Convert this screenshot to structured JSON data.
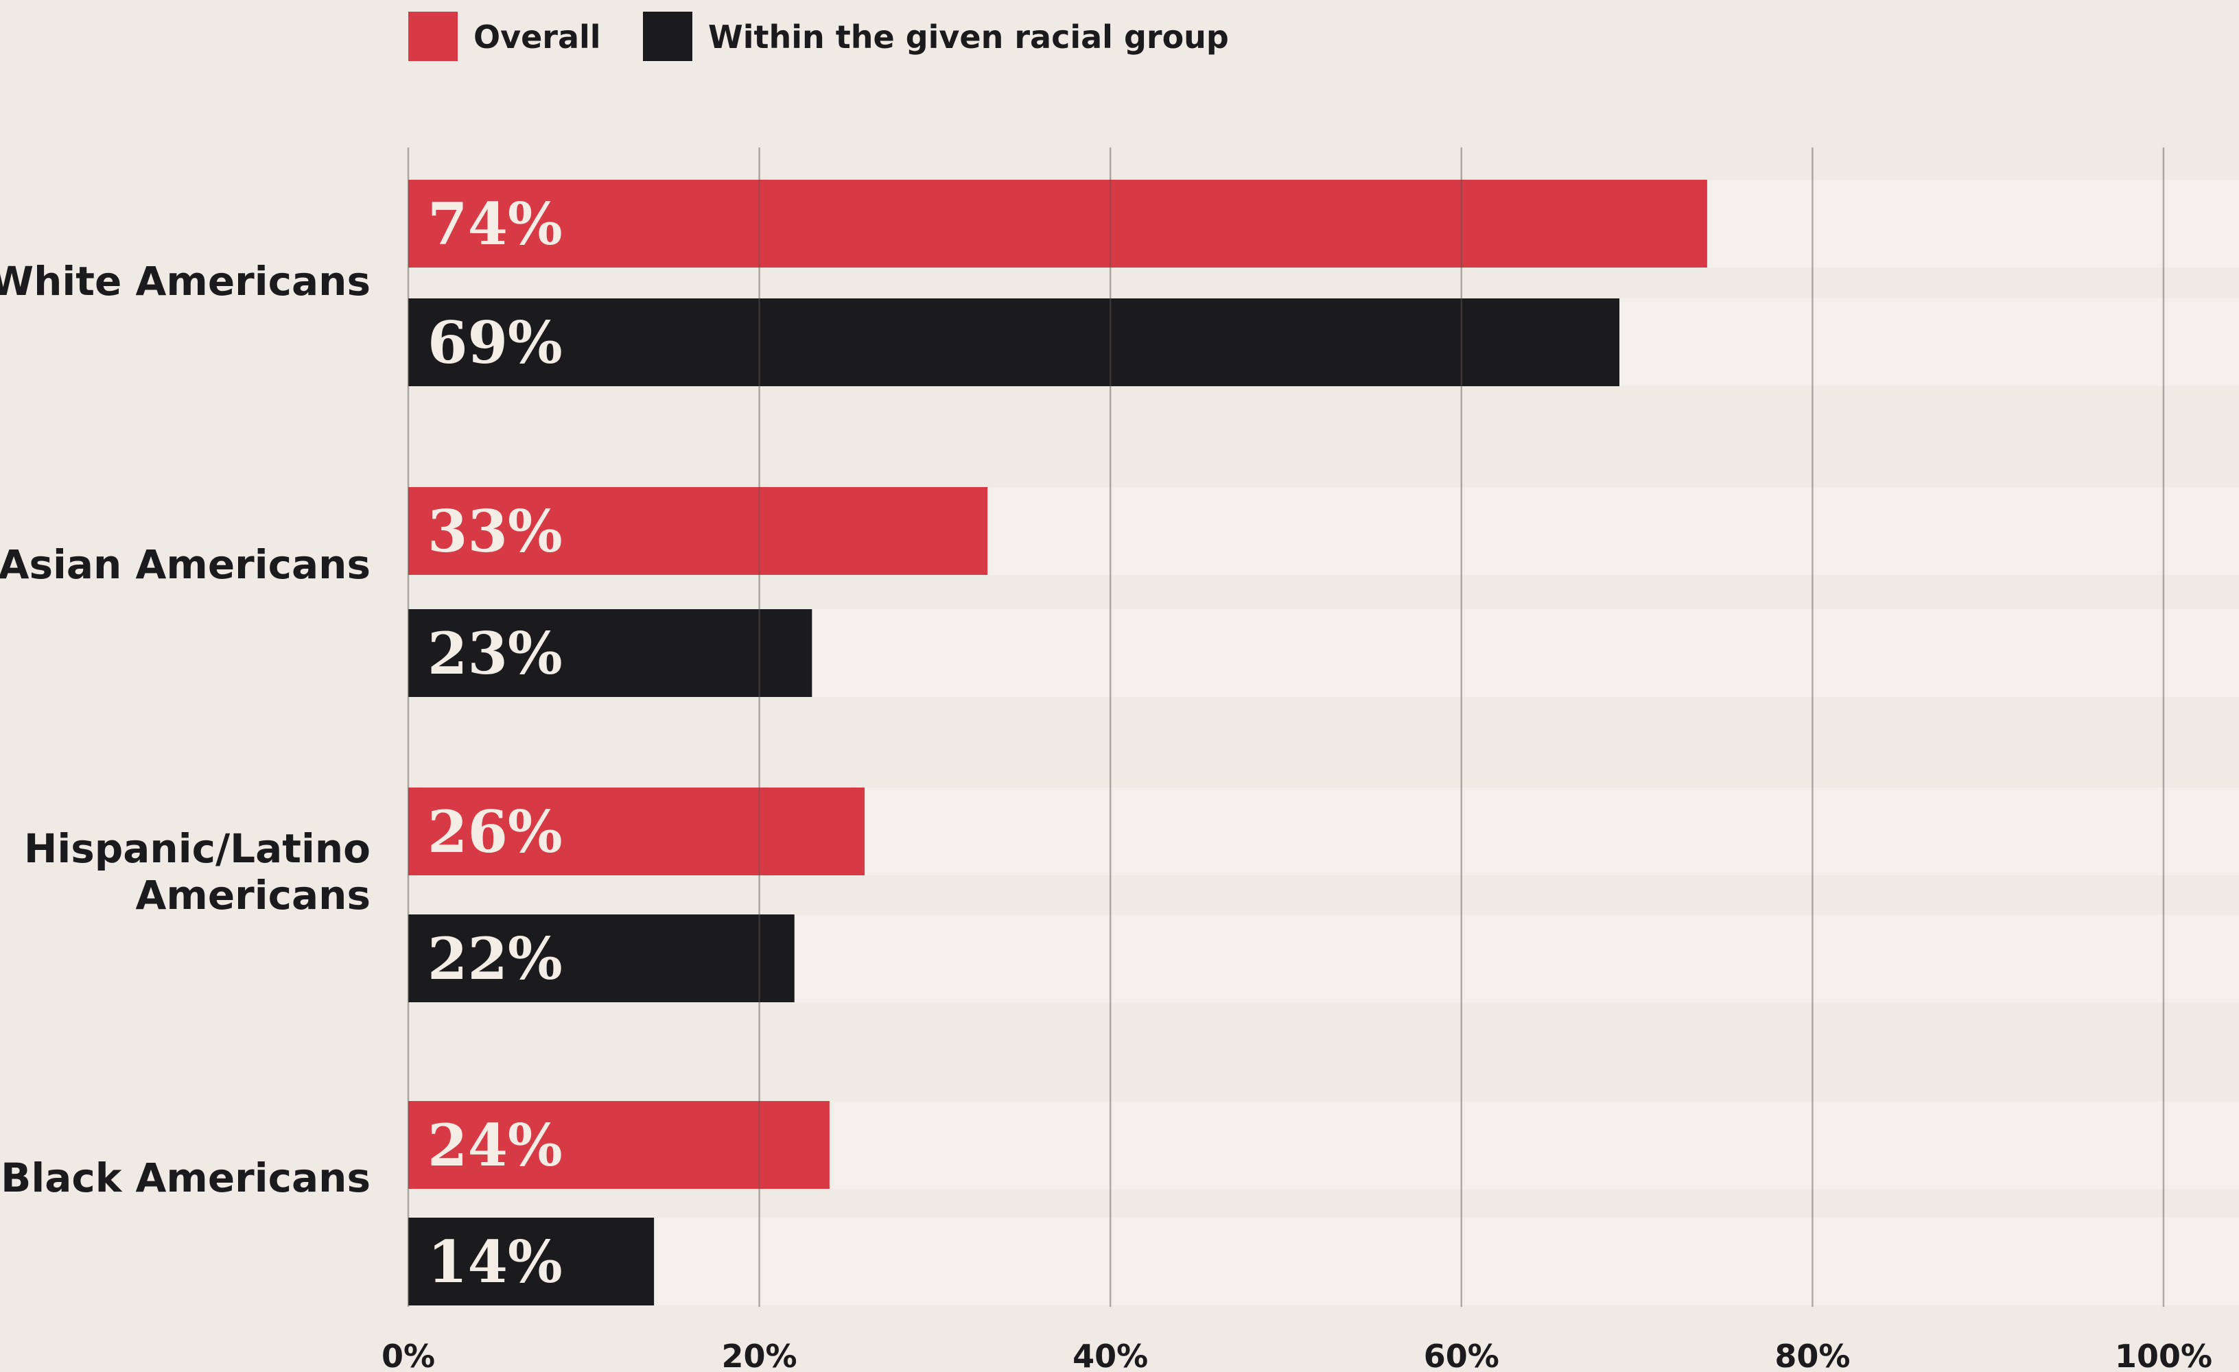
{
  "chart_data": {
    "type": "bar",
    "orientation": "horizontal",
    "categories": [
      [
        "White Americans"
      ],
      [
        "Asian Americans"
      ],
      [
        "Hispanic/Latino",
        "Americans"
      ],
      [
        "Black Americans"
      ]
    ],
    "series": [
      {
        "name": "Overall",
        "color": "#d83a45",
        "values": [
          74,
          33,
          26,
          24
        ],
        "labels": [
          "74%",
          "33%",
          "26%",
          "24%"
        ]
      },
      {
        "name": "Within the given racial group",
        "color": "#1b1b1d",
        "values": [
          69,
          23,
          22,
          14
        ],
        "labels": [
          "69%",
          "23%",
          "22%",
          "14%"
        ]
      }
    ],
    "xlim": [
      0,
      100
    ],
    "xticks": [
      0,
      20,
      40,
      60,
      80,
      100
    ],
    "xtick_labels": [
      "0%",
      "20%",
      "40%",
      "60%",
      "80%",
      "100%"
    ],
    "grid": true,
    "legend_position": "top-left",
    "title": "",
    "xlabel": "",
    "ylabel": ""
  }
}
